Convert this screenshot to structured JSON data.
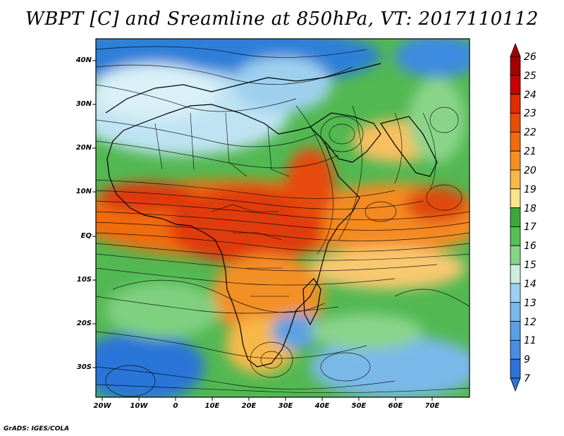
{
  "title": "WBPT [C] and Sreamline at 850hPa, VT: 2017110112",
  "footer": "GrADS: IGES/COLA",
  "map": {
    "lat_ticks": [
      "40N",
      "30N",
      "20N",
      "10N",
      "EQ",
      "10S",
      "20S",
      "30S"
    ],
    "lon_ticks": [
      "20W",
      "10W",
      "0",
      "10E",
      "20E",
      "30E",
      "40E",
      "50E",
      "60E",
      "70E"
    ]
  },
  "colorbar": {
    "labels": [
      "26",
      "25",
      "24",
      "23",
      "22",
      "21",
      "20",
      "19",
      "18",
      "17",
      "16",
      "15",
      "14",
      "13",
      "12",
      "11",
      "9",
      "7"
    ],
    "colors": [
      "#a50000",
      "#c80000",
      "#e02c00",
      "#ec4a08",
      "#f06c10",
      "#f49022",
      "#f8b848",
      "#fce48c",
      "#3da63d",
      "#55c055",
      "#85d585",
      "#cfeeda",
      "#9cd0ee",
      "#7ab8ea",
      "#5ca0e4",
      "#4a8ee0",
      "#2c74d8"
    ]
  },
  "colors": {
    "warm_core": "#e0380a",
    "cool_blue": "#4a8ee0",
    "green": "#4cb84c"
  }
}
